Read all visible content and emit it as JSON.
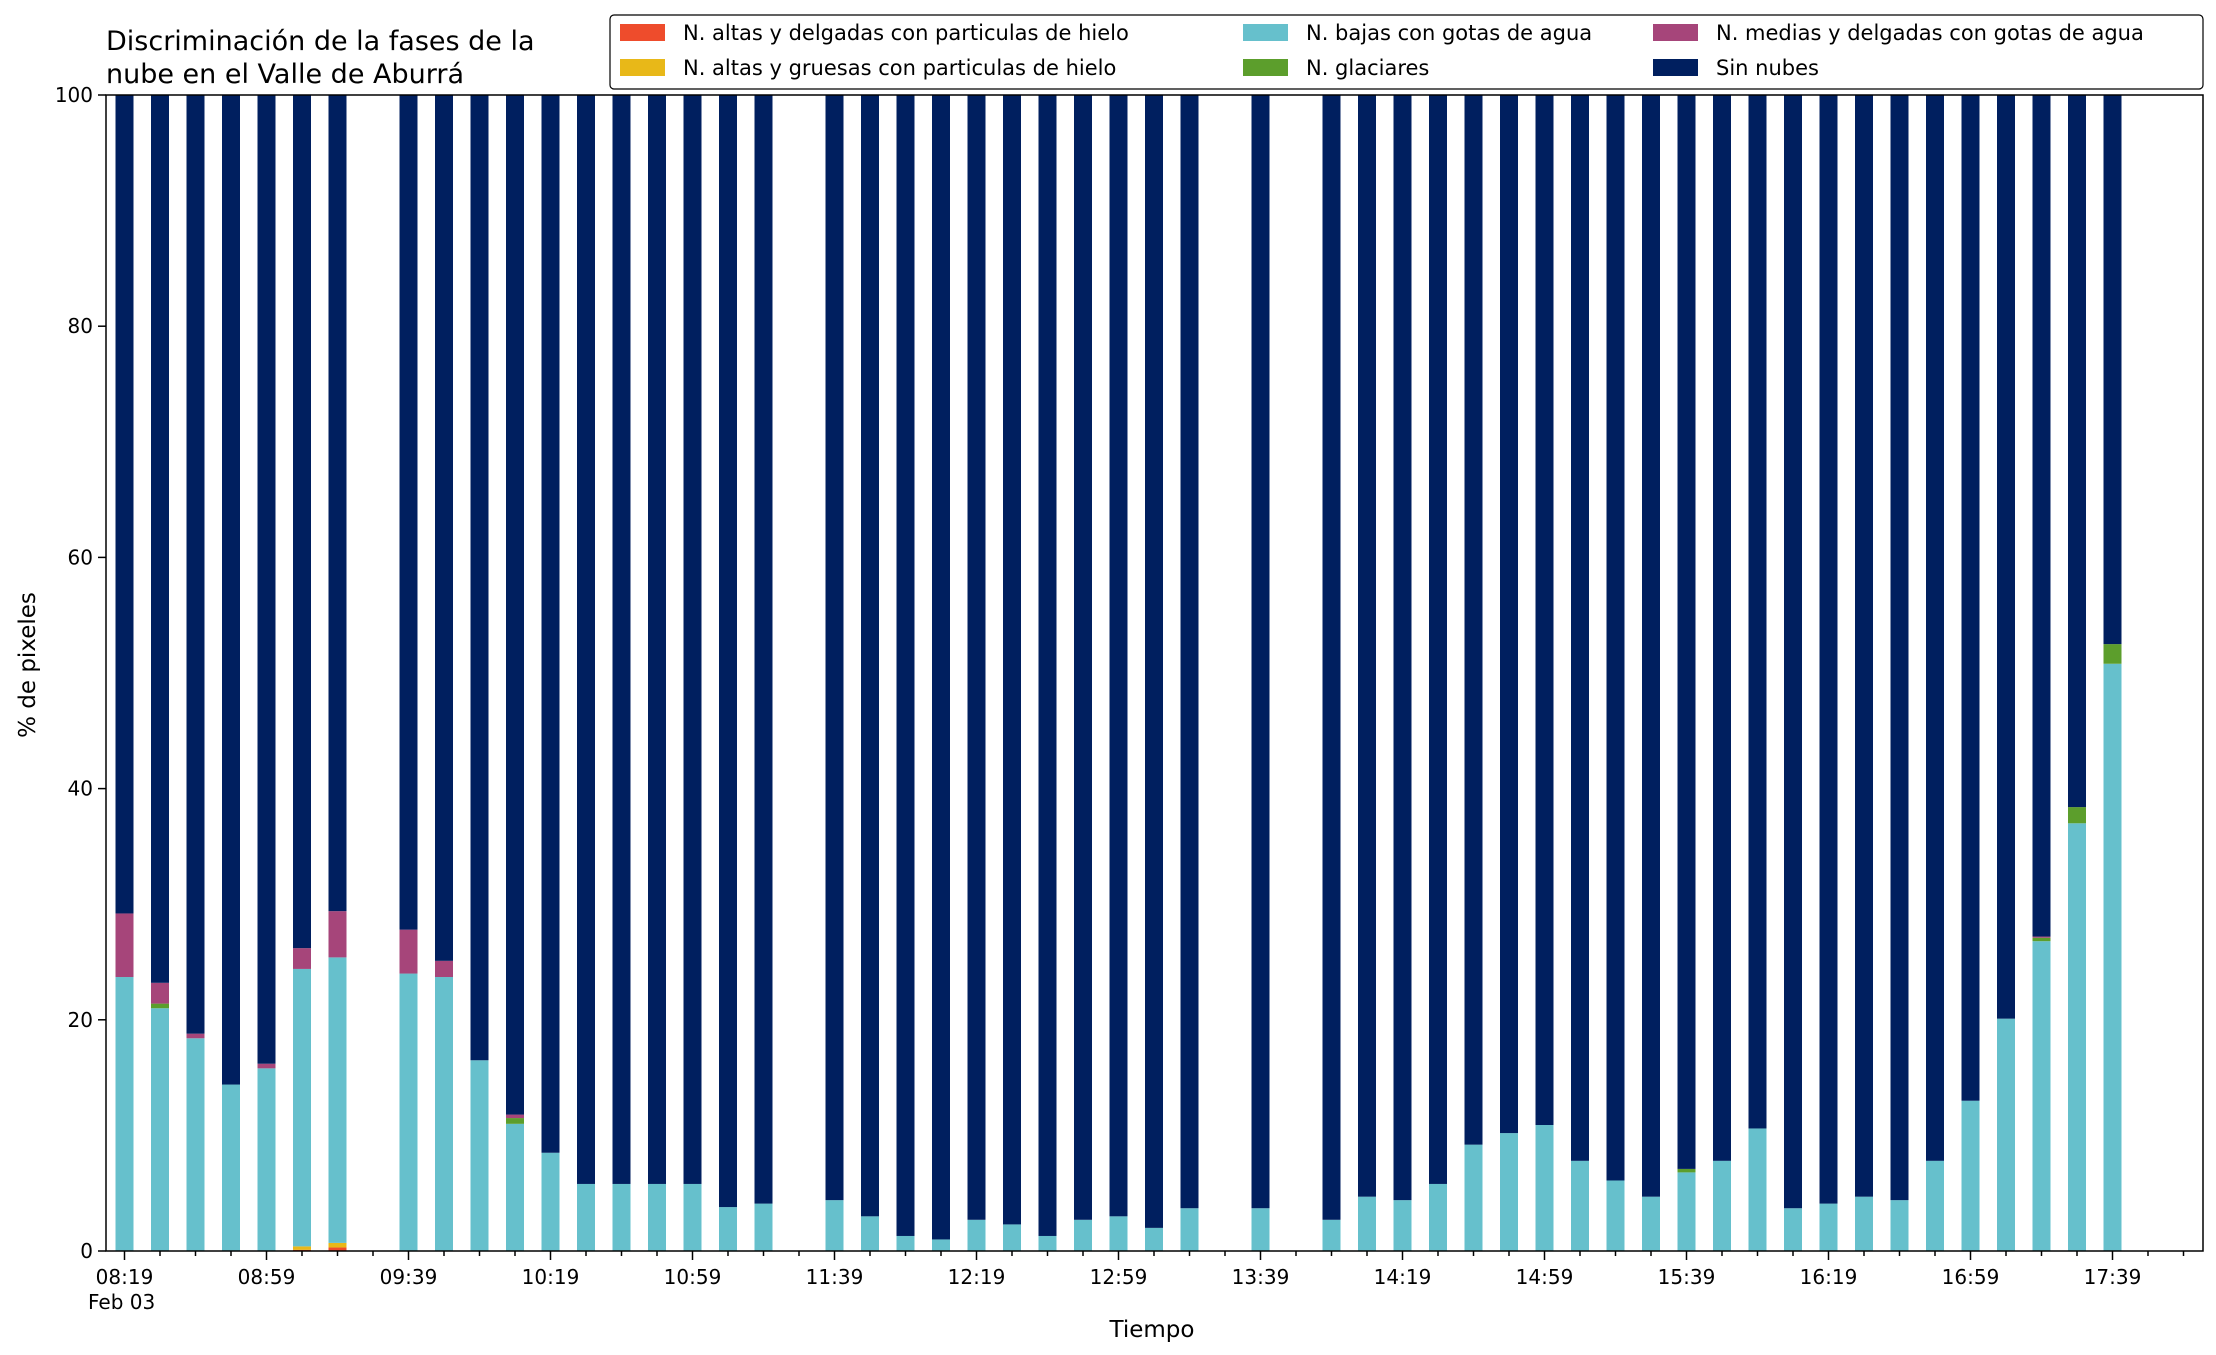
{
  "chart_data": {
    "type": "bar",
    "stacked": true,
    "title": [
      "Discriminación de la fases de la",
      "nube en el Valle de Aburrá"
    ],
    "xlabel": "Tiempo",
    "ylabel": "% de pixeles",
    "ylim": [
      0,
      100
    ],
    "yticks": [
      0,
      20,
      40,
      60,
      80,
      100
    ],
    "xtick_labels": [
      "08:19",
      "08:59",
      "09:39",
      "10:19",
      "10:59",
      "11:39",
      "12:19",
      "12:59",
      "13:39",
      "14:19",
      "14:59",
      "15:39",
      "16:19",
      "16:59",
      "17:39"
    ],
    "date_label": "Feb 03",
    "legend_position": "top-right",
    "colors": {
      "hielo_delgadas": "#ee4c2c",
      "hielo_gruesas": "#e8b818",
      "bajas": "#66c0cc",
      "glaciares": "#5c9e2c",
      "medias": "#a6457a",
      "sin_nubes": "#001f5f"
    },
    "legend": [
      {
        "key": "hielo_delgadas",
        "label": "N. altas y delgadas con particulas de hielo"
      },
      {
        "key": "hielo_gruesas",
        "label": "N. altas y gruesas con particulas de hielo"
      },
      {
        "key": "bajas",
        "label": "N. bajas con gotas de agua"
      },
      {
        "key": "glaciares",
        "label": "N. glaciares"
      },
      {
        "key": "medias",
        "label": "N. medias y delgadas con gotas de agua"
      },
      {
        "key": "sin_nubes",
        "label": "Sin nubes"
      }
    ],
    "x": [
      "08:19",
      "08:29",
      "08:39",
      "08:49",
      "08:59",
      "09:09",
      "09:19",
      "09:29",
      "09:39",
      "09:49",
      "09:59",
      "10:09",
      "10:19",
      "10:29",
      "10:39",
      "10:49",
      "10:59",
      "11:09",
      "11:19",
      "11:29",
      "11:39",
      "11:49",
      "11:59",
      "12:09",
      "12:19",
      "12:29",
      "12:39",
      "12:49",
      "12:59",
      "13:09",
      "13:19",
      "13:29",
      "13:39",
      "13:49",
      "13:59",
      "14:09",
      "14:19",
      "14:29",
      "14:39",
      "14:49",
      "14:59",
      "15:09",
      "15:19",
      "15:29",
      "15:39",
      "15:49",
      "15:59",
      "16:09",
      "16:19",
      "16:29",
      "16:39",
      "16:49",
      "16:59",
      "17:09",
      "17:19",
      "17:29",
      "17:39"
    ],
    "series": [
      {
        "key": "hielo_delgadas",
        "name": "N. altas y delgadas con particulas de hielo",
        "values": [
          0,
          0,
          0,
          0,
          0,
          0.1,
          0.3,
          null,
          0,
          0,
          0,
          0,
          0,
          0,
          0,
          0,
          0,
          0,
          0,
          null,
          0,
          0,
          0,
          0,
          0,
          0,
          0,
          0,
          0,
          0,
          0,
          null,
          0,
          null,
          0,
          0,
          0,
          0,
          0,
          0,
          0,
          0,
          0,
          0,
          0,
          0,
          0,
          0,
          0,
          0,
          0,
          0,
          0,
          0,
          0,
          0,
          0
        ]
      },
      {
        "key": "hielo_gruesas",
        "name": "N. altas y gruesas con particulas de hielo",
        "values": [
          0,
          0,
          0,
          0,
          0,
          0.3,
          0.4,
          null,
          0,
          0,
          0,
          0,
          0,
          0,
          0,
          0,
          0,
          0,
          0,
          null,
          0,
          0,
          0,
          0,
          0,
          0,
          0,
          0,
          0,
          0,
          0,
          null,
          0,
          null,
          0,
          0,
          0,
          0,
          0,
          0,
          0,
          0,
          0,
          0,
          0,
          0,
          0,
          0,
          0,
          0,
          0,
          0,
          0,
          0,
          0,
          0,
          0
        ]
      },
      {
        "key": "bajas",
        "name": "N. bajas con gotas de agua",
        "values": [
          23.7,
          21.0,
          18.4,
          14.4,
          15.8,
          24.0,
          24.7,
          null,
          24.0,
          23.7,
          16.5,
          11.0,
          8.5,
          5.8,
          5.8,
          5.8,
          5.8,
          3.8,
          4.1,
          null,
          4.4,
          3.0,
          1.3,
          1.0,
          2.7,
          2.3,
          1.3,
          2.7,
          3.0,
          2.0,
          3.7,
          null,
          3.7,
          null,
          2.7,
          4.7,
          4.4,
          5.8,
          9.2,
          10.2,
          10.9,
          7.8,
          6.1,
          4.7,
          6.8,
          7.8,
          10.6,
          3.7,
          4.1,
          4.7,
          4.4,
          7.8,
          13.0,
          20.1,
          26.8,
          37.0,
          50.8
        ]
      },
      {
        "key": "glaciares",
        "name": "N. glaciares",
        "values": [
          0,
          0.4,
          0,
          0,
          0,
          0,
          0,
          null,
          0,
          0,
          0,
          0.5,
          0,
          0,
          0,
          0,
          0,
          0,
          0,
          null,
          0,
          0,
          0,
          0,
          0,
          0,
          0,
          0,
          0,
          0,
          0,
          null,
          0,
          null,
          0,
          0,
          0,
          0,
          0,
          0,
          0,
          0,
          0,
          0,
          0.3,
          0,
          0,
          0,
          0,
          0,
          0,
          0,
          0,
          0,
          0.3,
          1.4,
          1.7
        ]
      },
      {
        "key": "medias",
        "name": "N. medias y delgadas con gotas de agua",
        "values": [
          5.5,
          1.8,
          0.4,
          0,
          0.4,
          1.8,
          4.0,
          null,
          3.8,
          1.4,
          0,
          0.3,
          0,
          0,
          0,
          0,
          0,
          0,
          0,
          null,
          0,
          0,
          0,
          0,
          0,
          0,
          0,
          0,
          0,
          0,
          0,
          null,
          0,
          null,
          0,
          0,
          0,
          0,
          0,
          0,
          0,
          0,
          0,
          0,
          0,
          0,
          0,
          0,
          0,
          0,
          0,
          0,
          0,
          0,
          0.1,
          0,
          0
        ]
      },
      {
        "key": "sin_nubes",
        "name": "Sin nubes",
        "values": [
          70.8,
          76.8,
          81.2,
          85.6,
          83.8,
          73.8,
          70.6,
          null,
          72.2,
          74.9,
          83.5,
          88.2,
          91.5,
          94.2,
          94.2,
          94.2,
          94.2,
          96.2,
          95.9,
          null,
          95.6,
          97.0,
          98.7,
          99.0,
          97.3,
          97.7,
          98.7,
          97.3,
          97.0,
          98.0,
          96.3,
          null,
          96.3,
          null,
          97.3,
          95.3,
          95.6,
          94.2,
          90.8,
          89.8,
          89.1,
          92.2,
          93.9,
          95.3,
          92.9,
          92.2,
          89.4,
          96.3,
          95.9,
          95.3,
          95.6,
          92.2,
          87.0,
          79.9,
          72.8,
          61.6,
          47.5
        ]
      }
    ]
  }
}
